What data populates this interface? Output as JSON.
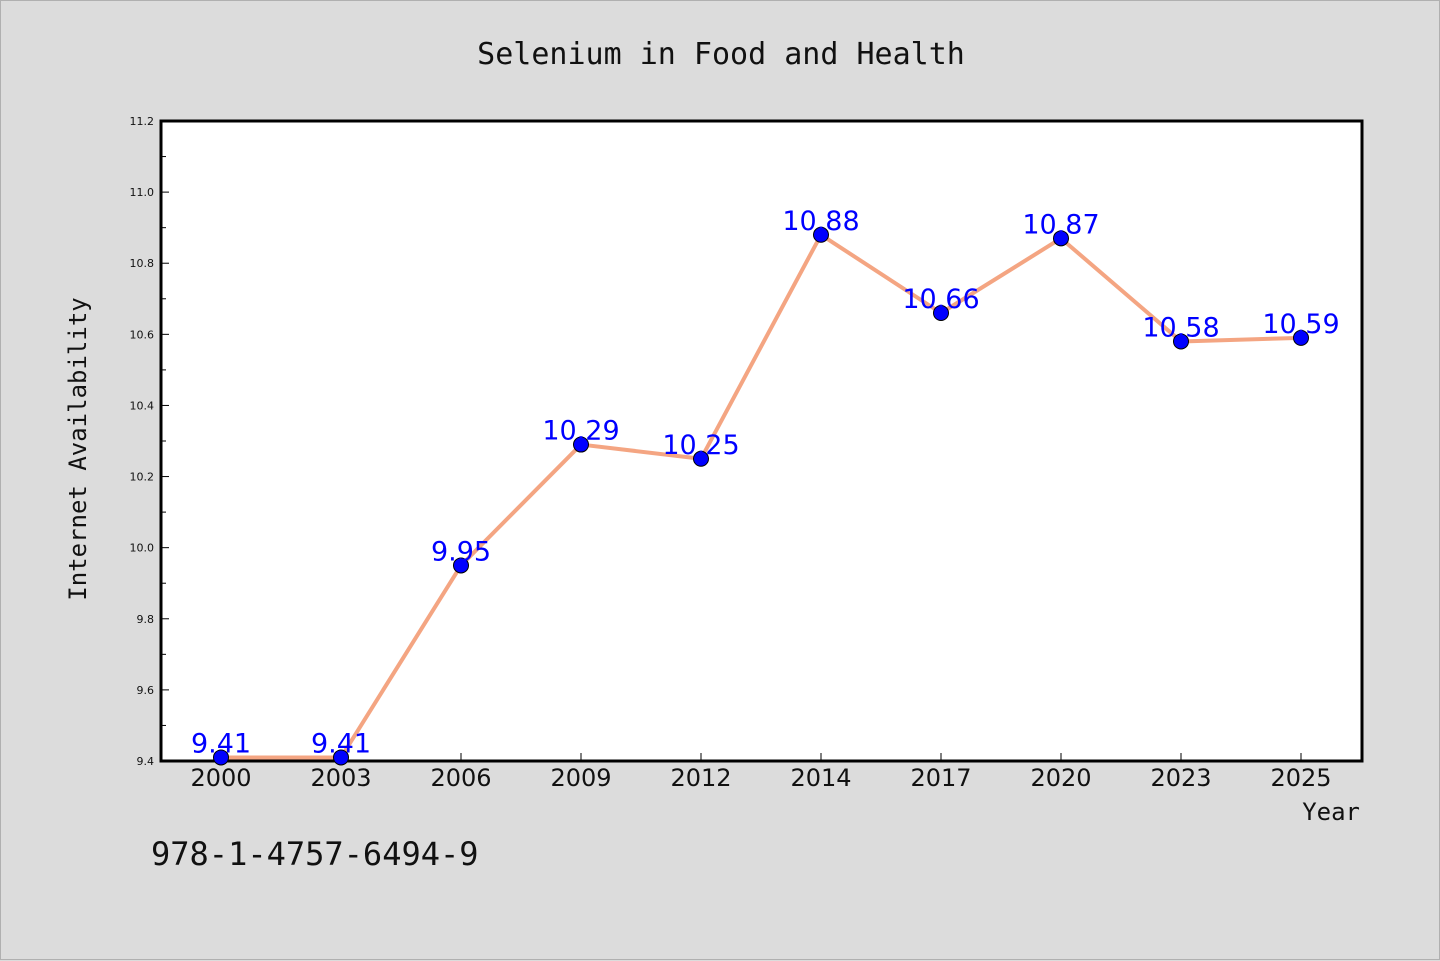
{
  "chart_data": {
    "type": "line",
    "title": "Selenium in Food and Health",
    "xlabel": "Year",
    "ylabel": "Internet Availability",
    "categories": [
      "2000",
      "2003",
      "2006",
      "2009",
      "2012",
      "2014",
      "2017",
      "2020",
      "2023",
      "2025"
    ],
    "series": [
      {
        "values": [
          9.41,
          9.41,
          9.95,
          10.29,
          10.25,
          10.88,
          10.66,
          10.87,
          10.58,
          10.59
        ],
        "data_labels": [
          "9.41",
          "9.41",
          "9.95",
          "10.29",
          "10.25",
          "10.88",
          "10.66",
          "10.87",
          "10.58",
          "10.59"
        ],
        "line_color": "#f4a582",
        "marker_color": "#0000ff"
      }
    ],
    "ylim": [
      9.4,
      11.2
    ],
    "yticks": [
      "9.4",
      "9.6",
      "9.8",
      "10.0",
      "10.2",
      "10.4",
      "10.6",
      "10.8",
      "11.0",
      "11.2"
    ],
    "grid": false,
    "legend": "none"
  },
  "footer": {
    "isbn": "978-1-4757-6494-9"
  }
}
